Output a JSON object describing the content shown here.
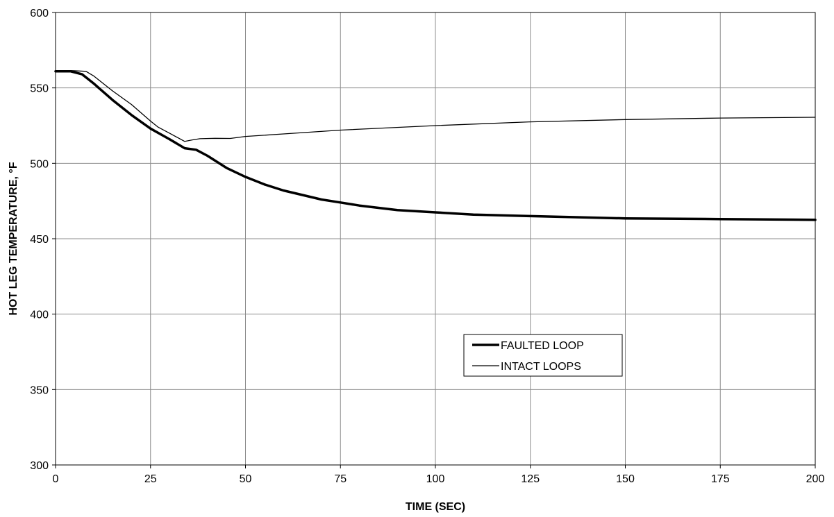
{
  "chart_data": {
    "type": "line",
    "title": "",
    "xlabel": "TIME (SEC)",
    "ylabel": "HOT LEG TEMPERATURE, °F",
    "xlim": [
      0,
      200
    ],
    "ylim": [
      300,
      600
    ],
    "xticks": [
      0,
      25,
      50,
      75,
      100,
      125,
      150,
      175,
      200
    ],
    "yticks": [
      300,
      350,
      400,
      450,
      500,
      550,
      600
    ],
    "grid": true,
    "legend_position": "center-right",
    "series": [
      {
        "name": "FAULTED LOOP",
        "color": "#000000",
        "style": "thick",
        "x": [
          0,
          4,
          7,
          10,
          15,
          20,
          25,
          30,
          34,
          37,
          40,
          45,
          50,
          55,
          60,
          65,
          70,
          75,
          80,
          90,
          100,
          110,
          125,
          150,
          175,
          200
        ],
        "y": [
          561,
          561,
          559,
          553,
          542,
          532,
          523,
          516,
          510,
          509,
          505,
          497,
          491,
          486,
          482,
          479,
          476,
          474,
          472,
          469,
          467.5,
          466,
          465,
          463.5,
          463,
          462.5
        ]
      },
      {
        "name": "INTACT LOOPS",
        "color": "#000000",
        "style": "thin",
        "x": [
          0,
          4,
          8,
          10,
          15,
          20,
          25,
          27,
          30,
          34,
          36,
          38,
          42,
          46,
          50,
          60,
          75,
          100,
          125,
          150,
          175,
          200
        ],
        "y": [
          561,
          561.5,
          561,
          558,
          548,
          539,
          528,
          524,
          520,
          514.5,
          515.5,
          516.3,
          516.6,
          516.5,
          517.8,
          519.5,
          522,
          525,
          527.5,
          529,
          530,
          530.5
        ]
      }
    ]
  }
}
